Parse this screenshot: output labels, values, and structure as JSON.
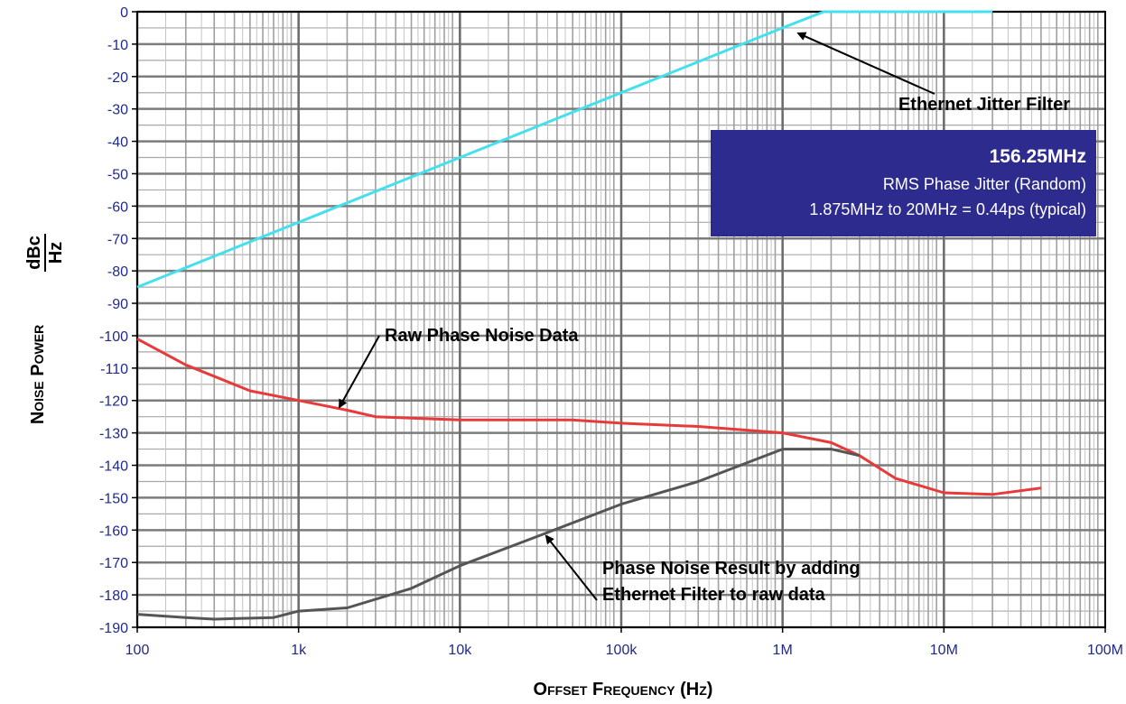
{
  "chart_data": {
    "type": "line",
    "title": "",
    "xlabel": "Offset Frequency (Hz)",
    "ylabel": "Noise Power",
    "ylabel_unit_num": "dBc",
    "ylabel_unit_den": "Hz",
    "x_scale": "log",
    "xlim": [
      100,
      100000000
    ],
    "ylim": [
      -190,
      0
    ],
    "grid": true,
    "x_ticks": [
      {
        "value": 100,
        "label": "100"
      },
      {
        "value": 1000,
        "label": "1k"
      },
      {
        "value": 10000,
        "label": "10k"
      },
      {
        "value": 100000,
        "label": "100k"
      },
      {
        "value": 1000000,
        "label": "1M"
      },
      {
        "value": 10000000,
        "label": "10M"
      },
      {
        "value": 100000000,
        "label": "100M"
      }
    ],
    "y_ticks": [
      0,
      -10,
      -20,
      -30,
      -40,
      -50,
      -60,
      -70,
      -80,
      -90,
      -100,
      -110,
      -120,
      -130,
      -140,
      -150,
      -160,
      -170,
      -180,
      -190
    ],
    "series": [
      {
        "color": "#44e0ee",
        "x": [
          100,
          1000,
          10000,
          100000,
          1000000,
          1800000,
          20000000
        ],
        "y": [
          -85,
          -65,
          -45,
          -25,
          -5,
          0,
          0
        ]
      },
      {
        "color": "#e83a3a",
        "x": [
          100,
          200,
          500,
          1000,
          2000,
          3000,
          10000,
          50000,
          100000,
          300000,
          1000000,
          2000000,
          3000000,
          5000000,
          10000000,
          20000000,
          40000000
        ],
        "y": [
          -101,
          -109,
          -117,
          -120,
          -123,
          -125,
          -126,
          -126,
          -127,
          -128,
          -130,
          -133,
          -137,
          -144,
          -148.5,
          -149,
          -147
        ]
      },
      {
        "color": "#555555",
        "x": [
          100,
          200,
          300,
          700,
          1000,
          2000,
          5000,
          10000,
          30000,
          100000,
          300000,
          1000000,
          2000000,
          3000000
        ],
        "y": [
          -186,
          -187,
          -187.5,
          -187,
          -185,
          -184,
          -178,
          -171,
          -162,
          -152,
          -145,
          -135,
          -135,
          -137
        ]
      }
    ],
    "annotations": [
      {
        "text": "Ethernet Jitter Filter",
        "x": 1130000,
        "y": -5
      },
      {
        "text": "Raw Phase Noise Data",
        "x": 1700000,
        "y": -122
      },
      {
        "text": "Phase Noise Result by adding",
        "x": 33000,
        "y": -160
      },
      {
        "text": "Ethernet Filter to raw data",
        "x": 33000,
        "y": -160
      }
    ],
    "info_box": {
      "title": "156.25MHz",
      "line1": "RMS Phase Jitter  (Random)",
      "line2": "1.875MHz to 20MHz = 0.44ps (typical)",
      "background": "#2e2b8e"
    }
  }
}
